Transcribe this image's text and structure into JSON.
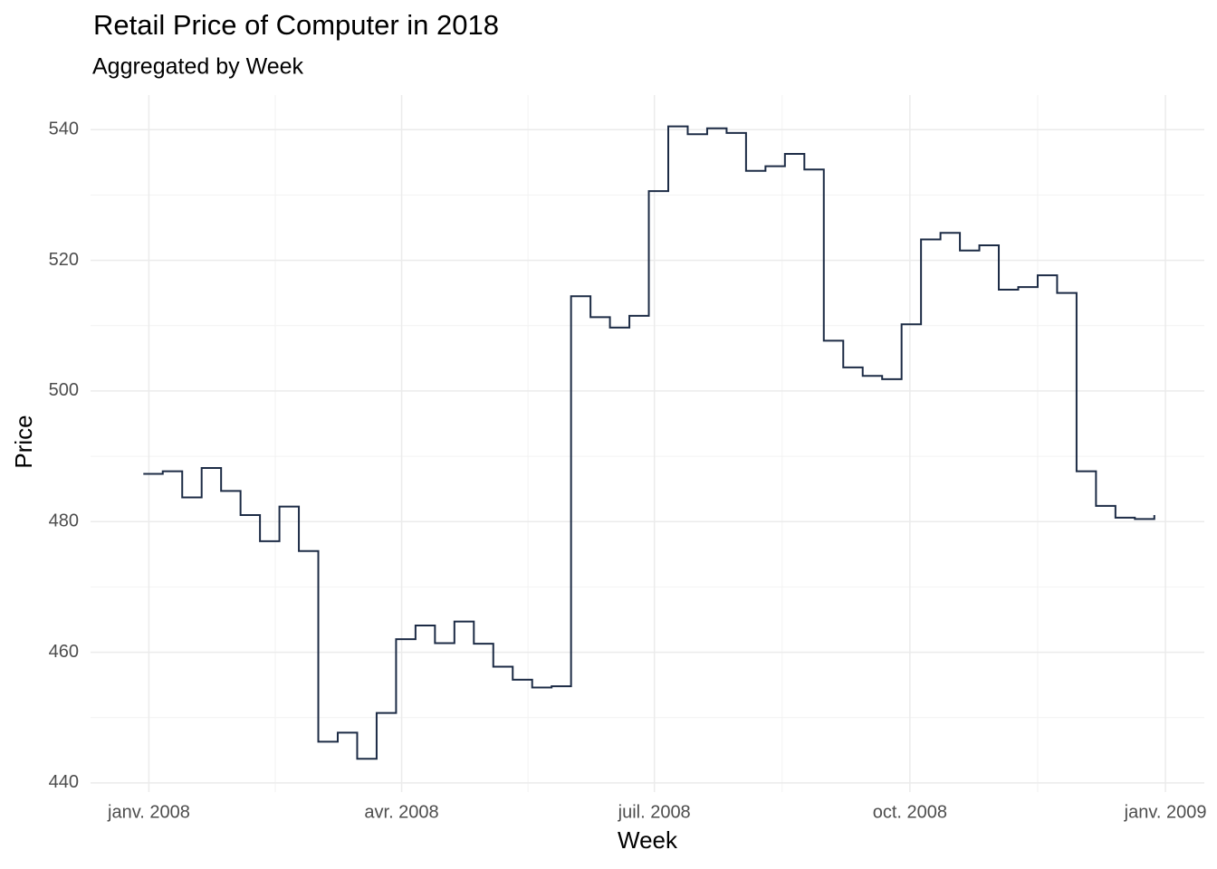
{
  "chart_data": {
    "type": "step",
    "title": "Retail Price of Computer in 2018",
    "subtitle": "Aggregated by Week",
    "x_label": "Week",
    "y_label": "Price",
    "color": "#1c2b45",
    "grid": true,
    "x": [
      "2007-12-30",
      "2008-01-06",
      "2008-01-13",
      "2008-01-20",
      "2008-01-27",
      "2008-02-03",
      "2008-02-10",
      "2008-02-17",
      "2008-02-24",
      "2008-03-02",
      "2008-03-09",
      "2008-03-16",
      "2008-03-23",
      "2008-03-30",
      "2008-04-06",
      "2008-04-13",
      "2008-04-20",
      "2008-04-27",
      "2008-05-04",
      "2008-05-11",
      "2008-05-18",
      "2008-05-25",
      "2008-06-01",
      "2008-06-08",
      "2008-06-15",
      "2008-06-22",
      "2008-06-29",
      "2008-07-06",
      "2008-07-13",
      "2008-07-20",
      "2008-07-27",
      "2008-08-03",
      "2008-08-10",
      "2008-08-17",
      "2008-08-24",
      "2008-08-31",
      "2008-09-07",
      "2008-09-14",
      "2008-09-21",
      "2008-09-28",
      "2008-10-05",
      "2008-10-12",
      "2008-10-19",
      "2008-10-26",
      "2008-11-02",
      "2008-11-09",
      "2008-11-16",
      "2008-11-23",
      "2008-11-30",
      "2008-12-07",
      "2008-12-14",
      "2008-12-21",
      "2008-12-28"
    ],
    "values": [
      487.3,
      487.7,
      483.7,
      488.2,
      484.7,
      481.0,
      477.0,
      482.3,
      475.5,
      446.3,
      447.7,
      443.7,
      450.7,
      462.0,
      464.1,
      461.4,
      464.7,
      461.3,
      457.8,
      455.8,
      454.6,
      454.8,
      514.5,
      511.3,
      509.7,
      511.5,
      530.6,
      540.5,
      539.3,
      540.2,
      539.5,
      533.7,
      534.4,
      536.3,
      533.9,
      507.7,
      503.6,
      502.3,
      501.8,
      510.2,
      523.2,
      524.2,
      521.5,
      522.3,
      515.5,
      515.9,
      517.7,
      515.0,
      487.7,
      482.4,
      480.6,
      480.4,
      481.0
    ],
    "xlim": [
      "2007-12-11",
      "2009-01-15"
    ],
    "xticks": [
      {
        "value": "2008-01-01",
        "label": "janv. 2008"
      },
      {
        "value": "2008-04-01",
        "label": "avr. 2008"
      },
      {
        "value": "2008-07-01",
        "label": "juil. 2008"
      },
      {
        "value": "2008-10-01",
        "label": "oct. 2008"
      },
      {
        "value": "2009-01-01",
        "label": "janv. 2009"
      }
    ],
    "ylim": [
      438.6,
      545.3
    ],
    "yticks": [
      440,
      460,
      480,
      500,
      520,
      540
    ]
  }
}
